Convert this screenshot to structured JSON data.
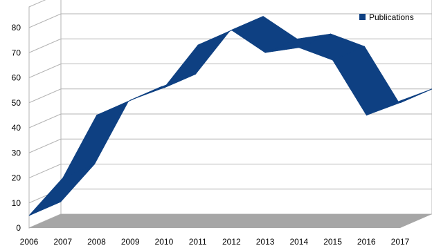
{
  "chart_data": {
    "type": "area",
    "categories": [
      "2006",
      "2007",
      "2008",
      "2009",
      "2010",
      "2011",
      "2012",
      "2013",
      "2014",
      "2015",
      "2016",
      "2017"
    ],
    "series": [
      {
        "name": "Publications",
        "values": [
          5,
          20,
          45,
          51,
          56,
          73,
          79,
          70,
          72,
          67,
          45,
          50
        ]
      }
    ],
    "yticks": [
      "0",
      "10",
      "20",
      "30",
      "40",
      "50",
      "60",
      "70",
      "80"
    ],
    "ylim": [
      0,
      80
    ],
    "title": "",
    "xlabel": "",
    "ylabel": "",
    "legend": {
      "position": "top-right"
    },
    "grid": true,
    "style": "3d-ribbon",
    "colors": {
      "series": "#0e4082",
      "floor": "#a6a6a6",
      "grid": "#b3b3b3",
      "wall": "#ffffff"
    }
  }
}
